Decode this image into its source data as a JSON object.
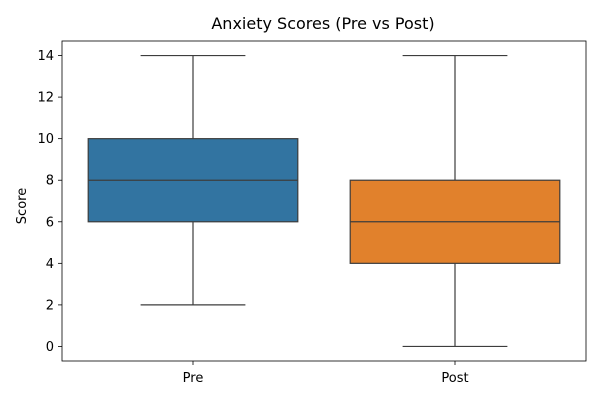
{
  "chart_data": {
    "type": "box",
    "title": "Anxiety Scores (Pre vs Post)",
    "xlabel": "",
    "ylabel": "Score",
    "ylim": [
      -0.7,
      14.7
    ],
    "yticks": [
      0,
      2,
      4,
      6,
      8,
      10,
      12,
      14
    ],
    "grid": false,
    "categories": [
      "Pre",
      "Post"
    ],
    "boxes": [
      {
        "category": "Pre",
        "whisker_low": 2,
        "q1": 6,
        "median": 8,
        "q3": 10,
        "whisker_high": 14,
        "color": "#3274a1"
      },
      {
        "category": "Post",
        "whisker_low": 0,
        "q1": 4,
        "median": 6,
        "q3": 8,
        "whisker_high": 14,
        "color": "#e1812c"
      }
    ],
    "line_color": "#3d3d3d"
  }
}
